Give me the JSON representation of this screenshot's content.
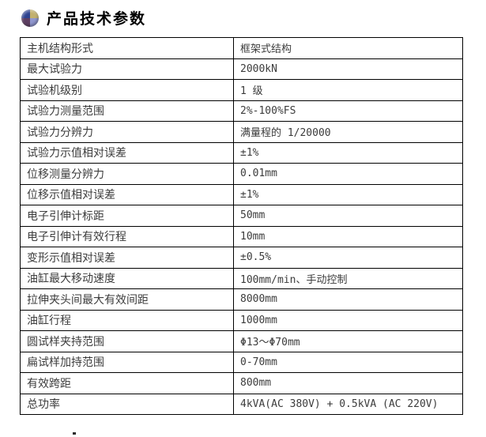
{
  "page": {
    "title": "产品技术参数"
  },
  "header_icon": {
    "name": "sphere-logo-icon",
    "quadrant_colors": {
      "top_left": "#2e4391",
      "top_right": "#c2b06e",
      "bottom_left": "#5e3f63",
      "bottom_right": "#9097cf"
    }
  },
  "colors": {
    "background": "#ffffff",
    "table_border": "#000000",
    "cell_text": "#3c3c3c",
    "title_text": "#000000"
  },
  "table": {
    "rows": [
      {
        "label": "主机结构形式",
        "value": "框架式结构"
      },
      {
        "label": "最大试验力",
        "value": "2000kN"
      },
      {
        "label": "试验机级别",
        "value": "1 级"
      },
      {
        "label": "试验力测量范围",
        "value": "2%-100%FS"
      },
      {
        "label": "试验力分辨力",
        "value": "满量程的 1/20000"
      },
      {
        "label": "试验力示值相对误差",
        "value": "±1%"
      },
      {
        "label": "位移测量分辨力",
        "value": "0.01mm"
      },
      {
        "label": "位移示值相对误差",
        "value": "±1%"
      },
      {
        "label": "电子引伸计标距",
        "value": "50mm"
      },
      {
        "label": "电子引伸计有效行程",
        "value": "10mm"
      },
      {
        "label": "变形示值相对误差",
        "value": "±0.5%"
      },
      {
        "label": "油缸最大移动速度",
        "value": "100mm/min、手动控制"
      },
      {
        "label": "拉伸夹头间最大有效间距",
        "value": "8000mm"
      },
      {
        "label": "油缸行程",
        "value": "1000mm"
      },
      {
        "label": "圆试样夹持范围",
        "value": "Φ13～Φ70mm"
      },
      {
        "label": "扁试样加持范围",
        "value": "0-70mm"
      },
      {
        "label": "有效跨距",
        "value": "800mm"
      },
      {
        "label": "总功率",
        "value": "4kVA(AC 380V) + 0.5kVA (AC 220V)"
      }
    ]
  }
}
